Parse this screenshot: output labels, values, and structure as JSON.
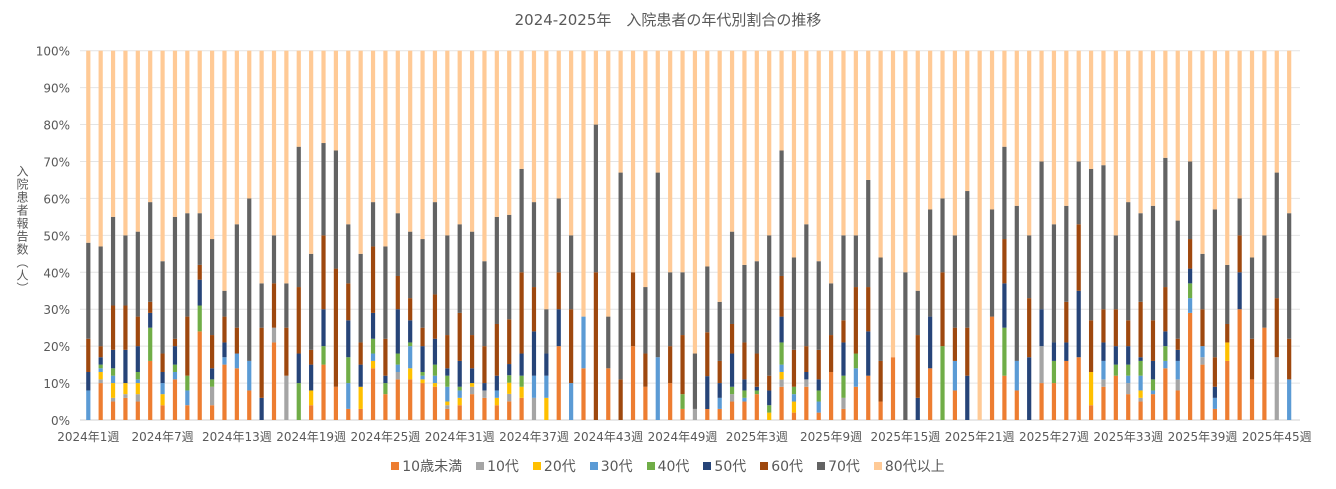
{
  "chart_data": {
    "type": "bar",
    "stacked": "percent",
    "title": "2024-2025年　入院患者の年代別割合の推移",
    "ylabel": "入院患者報告数（人）",
    "xlabel": "",
    "ylim": [
      0,
      100
    ],
    "y_tick_labels": [
      "0%",
      "10%",
      "20%",
      "30%",
      "40%",
      "50%",
      "60%",
      "70%",
      "80%",
      "90%",
      "100%"
    ],
    "x_tick_labels": [
      "2024年1週",
      "2024年7週",
      "2024年13週",
      "2024年19週",
      "2024年25週",
      "2024年31週",
      "2024年37週",
      "2024年43週",
      "2024年49週",
      "2025年3週",
      "2025年9週",
      "2025年15週",
      "2025年21週",
      "2025年27週",
      "2025年33週",
      "2025年39週",
      "2025年45週"
    ],
    "x_range": "2024年1週 – 2025年46週",
    "grid": true,
    "legend_position": "bottom",
    "series": [
      {
        "name": "10歳未満",
        "color": "#ED7D31"
      },
      {
        "name": "10代",
        "color": "#A5A5A5"
      },
      {
        "name": "20代",
        "color": "#FFC000"
      },
      {
        "name": "30代",
        "color": "#5B9BD5"
      },
      {
        "name": "40代",
        "color": "#70AD47"
      },
      {
        "name": "50代",
        "color": "#264478"
      },
      {
        "name": "60代",
        "color": "#9E480E"
      },
      {
        "name": "70代",
        "color": "#636363"
      },
      {
        "name": "80代以上",
        "color": "#FFCA96"
      }
    ],
    "values_by_week_percent": [
      [
        0,
        0,
        0,
        8,
        0,
        5,
        9,
        26,
        52
      ],
      [
        10,
        1,
        2,
        1,
        1,
        2,
        3,
        27,
        53
      ],
      [
        5,
        1,
        4,
        2,
        2,
        5,
        12,
        24,
        45
      ],
      [
        6,
        1,
        3,
        0,
        0,
        9,
        12,
        19,
        50
      ],
      [
        5,
        2,
        3,
        1,
        2,
        7,
        8,
        23,
        49
      ],
      [
        16,
        0,
        0,
        0,
        9,
        4,
        3,
        27,
        41
      ],
      [
        4,
        0,
        3,
        3,
        0,
        3,
        5,
        25,
        57
      ],
      [
        11,
        0,
        0,
        2,
        2,
        5,
        2,
        33,
        45
      ],
      [
        4,
        0,
        0,
        4,
        4,
        0,
        16,
        28,
        44
      ],
      [
        24,
        0,
        0,
        0,
        7,
        7,
        4,
        14,
        44
      ],
      [
        4,
        5,
        0,
        0,
        2,
        3,
        9,
        26,
        51
      ],
      [
        15,
        0,
        0,
        2,
        0,
        4,
        7,
        7,
        65
      ],
      [
        14,
        0,
        0,
        4,
        0,
        0,
        7,
        28,
        47
      ],
      [
        8,
        0,
        0,
        8,
        0,
        0,
        0,
        44,
        40
      ],
      [
        0,
        0,
        0,
        0,
        0,
        6,
        19,
        12,
        63
      ],
      [
        21,
        4,
        0,
        0,
        0,
        0,
        12,
        13,
        50
      ],
      [
        0,
        12,
        0,
        0,
        0,
        0,
        13,
        12,
        63
      ],
      [
        0,
        0,
        0,
        0,
        10,
        8,
        18,
        38,
        26
      ],
      [
        4,
        0,
        4,
        0,
        0,
        7,
        4,
        26,
        55
      ],
      [
        15,
        0,
        0,
        0,
        5,
        10,
        20,
        25,
        25
      ],
      [
        9,
        0,
        0,
        0,
        0,
        0,
        32,
        32,
        27
      ],
      [
        3,
        0,
        0,
        7,
        7,
        10,
        10,
        16,
        47
      ],
      [
        3,
        0,
        6,
        0,
        0,
        6,
        6,
        24,
        55
      ],
      [
        14,
        0,
        2,
        2,
        4,
        7,
        18,
        12,
        41
      ],
      [
        7,
        0,
        0,
        0,
        3,
        2,
        10,
        25,
        53
      ],
      [
        11,
        2,
        0,
        2,
        3,
        12,
        9,
        17,
        44
      ],
      [
        11,
        0,
        3,
        6,
        1,
        6,
        6,
        18,
        49
      ],
      [
        10,
        0,
        1,
        1,
        1,
        7,
        5,
        24,
        51
      ],
      [
        9,
        0,
        1,
        2,
        3,
        7,
        12,
        25,
        41
      ],
      [
        3,
        1,
        1,
        4,
        3,
        2,
        9,
        27,
        50
      ],
      [
        4,
        0,
        2,
        2,
        1,
        7,
        13,
        24,
        47
      ],
      [
        7,
        2,
        1,
        0,
        0,
        4,
        9,
        28,
        49
      ],
      [
        6,
        2,
        0,
        0,
        0,
        2,
        10,
        23,
        57
      ],
      [
        4,
        0,
        2,
        2,
        0,
        4,
        14,
        29,
        45
      ],
      [
        5,
        2,
        3,
        0,
        2,
        3,
        12,
        28,
        44
      ],
      [
        6,
        0,
        3,
        0,
        3,
        6,
        22,
        28,
        32
      ],
      [
        0,
        6,
        0,
        6,
        0,
        12,
        12,
        23,
        41
      ],
      [
        0,
        0,
        6,
        6,
        0,
        6,
        0,
        12,
        70
      ],
      [
        20,
        0,
        0,
        0,
        0,
        10,
        10,
        20,
        40
      ],
      [
        0,
        0,
        0,
        10,
        0,
        0,
        20,
        20,
        50
      ],
      [
        14,
        0,
        0,
        14,
        0,
        0,
        0,
        0,
        72
      ],
      [
        0,
        0,
        0,
        0,
        0,
        0,
        40,
        40,
        20
      ],
      [
        14,
        0,
        0,
        0,
        0,
        0,
        0,
        14,
        72
      ],
      [
        0,
        0,
        0,
        0,
        0,
        0,
        11,
        56,
        33
      ],
      [
        20,
        0,
        0,
        0,
        0,
        0,
        20,
        0,
        60
      ],
      [
        9,
        0,
        0,
        0,
        0,
        0,
        9,
        18,
        64
      ],
      [
        0,
        0,
        0,
        17,
        0,
        0,
        0,
        50,
        33
      ],
      [
        10,
        0,
        0,
        0,
        0,
        0,
        10,
        20,
        60
      ],
      [
        3,
        0,
        0,
        0,
        4,
        0,
        16,
        17,
        60
      ],
      [
        0,
        3,
        0,
        0,
        0,
        0,
        0,
        15,
        82
      ],
      [
        3,
        0,
        0,
        0,
        0,
        9,
        12,
        18,
        59
      ],
      [
        3,
        0,
        0,
        3,
        0,
        4,
        6,
        16,
        68
      ],
      [
        5,
        2,
        0,
        0,
        2,
        9,
        8,
        25,
        49
      ],
      [
        5,
        0,
        0,
        1,
        2,
        3,
        10,
        21,
        58
      ],
      [
        7,
        0,
        0,
        0,
        1,
        1,
        9,
        25,
        57
      ],
      [
        0,
        0,
        2,
        0,
        2,
        4,
        4,
        38,
        50
      ],
      [
        9,
        2,
        2,
        2,
        6,
        7,
        11,
        34,
        27
      ],
      [
        2,
        0,
        3,
        2,
        2,
        0,
        10,
        25,
        56
      ],
      [
        9,
        2,
        0,
        0,
        0,
        2,
        7,
        33,
        47
      ],
      [
        2,
        0,
        0,
        3,
        3,
        3,
        8,
        24,
        57
      ],
      [
        13,
        0,
        0,
        0,
        0,
        0,
        10,
        14,
        63
      ],
      [
        3,
        3,
        0,
        0,
        6,
        9,
        6,
        23,
        50
      ],
      [
        9,
        0,
        0,
        5,
        4,
        0,
        18,
        14,
        50
      ],
      [
        12,
        0,
        0,
        0,
        0,
        12,
        12,
        29,
        35
      ],
      [
        5,
        0,
        0,
        0,
        0,
        0,
        11,
        28,
        56
      ],
      [
        17,
        0,
        0,
        0,
        0,
        0,
        0,
        0,
        83
      ],
      [
        0,
        0,
        0,
        0,
        0,
        0,
        0,
        40,
        60
      ],
      [
        0,
        0,
        0,
        0,
        0,
        6,
        17,
        12,
        65
      ],
      [
        14,
        0,
        0,
        0,
        0,
        14,
        0,
        29,
        43
      ],
      [
        0,
        0,
        0,
        0,
        20,
        0,
        20,
        20,
        40
      ],
      [
        8,
        0,
        0,
        8,
        0,
        0,
        9,
        25,
        50
      ],
      [
        0,
        0,
        0,
        0,
        0,
        12,
        13,
        37,
        38
      ],
      [
        0,
        0,
        0,
        0,
        0,
        0,
        0,
        0,
        100
      ],
      [
        28,
        0,
        0,
        0,
        0,
        0,
        0,
        29,
        43
      ],
      [
        12,
        0,
        0,
        0,
        13,
        12,
        12,
        25,
        26
      ],
      [
        8,
        0,
        0,
        8,
        0,
        0,
        0,
        42,
        42
      ],
      [
        0,
        0,
        0,
        0,
        0,
        17,
        16,
        17,
        50
      ],
      [
        10,
        10,
        0,
        0,
        0,
        10,
        0,
        40,
        30
      ],
      [
        10,
        0,
        0,
        0,
        6,
        5,
        0,
        32,
        47
      ],
      [
        16,
        0,
        0,
        0,
        0,
        5,
        11,
        26,
        42
      ],
      [
        17,
        0,
        0,
        0,
        0,
        18,
        18,
        17,
        30
      ],
      [
        4,
        0,
        9,
        0,
        0,
        0,
        14,
        41,
        32
      ],
      [
        9,
        2,
        0,
        5,
        0,
        5,
        9,
        39,
        31
      ],
      [
        12,
        0,
        0,
        0,
        3,
        5,
        10,
        20,
        50
      ],
      [
        7,
        3,
        0,
        2,
        3,
        5,
        7,
        32,
        41
      ],
      [
        5,
        1,
        2,
        4,
        4,
        1,
        15,
        24,
        44
      ],
      [
        7,
        0,
        0,
        1,
        3,
        5,
        11,
        31,
        42
      ],
      [
        14,
        0,
        0,
        2,
        4,
        4,
        12,
        35,
        29
      ],
      [
        8,
        3,
        0,
        5,
        0,
        3,
        3,
        32,
        46
      ],
      [
        29,
        0,
        0,
        4,
        4,
        4,
        8,
        21,
        30
      ],
      [
        15,
        2,
        0,
        3,
        0,
        0,
        10,
        15,
        55
      ],
      [
        3,
        0,
        0,
        3,
        0,
        3,
        8,
        40,
        43
      ],
      [
        16,
        0,
        5,
        0,
        0,
        0,
        5,
        16,
        58
      ],
      [
        30,
        0,
        0,
        0,
        0,
        10,
        10,
        10,
        40
      ],
      [
        11,
        0,
        0,
        0,
        0,
        0,
        11,
        22,
        56
      ],
      [
        25,
        0,
        0,
        0,
        0,
        0,
        0,
        25,
        50
      ],
      [
        0,
        17,
        0,
        0,
        0,
        0,
        16,
        34,
        33
      ],
      [
        0,
        0,
        0,
        11,
        0,
        0,
        11,
        34,
        44
      ]
    ]
  }
}
